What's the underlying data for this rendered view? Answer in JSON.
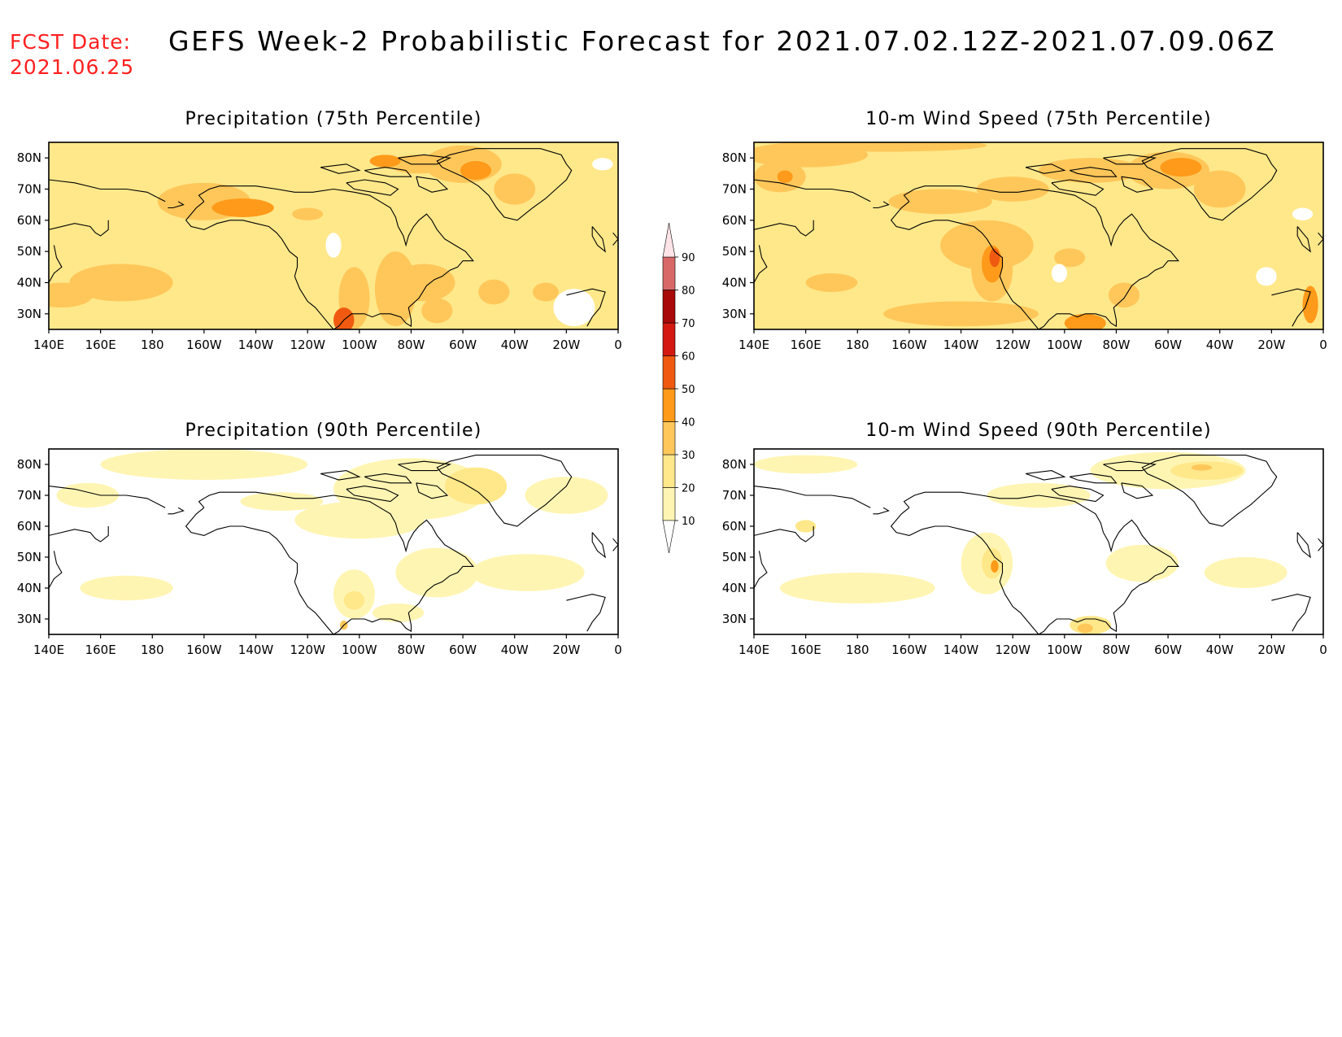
{
  "header": {
    "fcst_label": "FCST Date:",
    "fcst_date": "2021.06.25",
    "title": "GEFS Week-2 Probabilistic Forecast for 2021.07.02.12Z-2021.07.09.06Z"
  },
  "axes": {
    "lon_ticks": [
      "140E",
      "160E",
      "180",
      "160W",
      "140W",
      "120W",
      "100W",
      "80W",
      "60W",
      "40W",
      "20W",
      "0"
    ],
    "lat_ticks": [
      "80N",
      "70N",
      "60N",
      "50N",
      "40N",
      "30N"
    ]
  },
  "legend": {
    "levels": [
      "10",
      "20",
      "30",
      "40",
      "50",
      "60",
      "70",
      "80",
      "90"
    ],
    "colors": [
      "#fff5b3",
      "#ffe88a",
      "#ffc75a",
      "#ff9a1a",
      "#f05a10",
      "#d41a10",
      "#a80a0a",
      "#d86868",
      "#f0a0a8",
      "#ffe4e8"
    ]
  },
  "panels": [
    {
      "id": "precip-75",
      "title": "Precipitation (75th Percentile)",
      "blobs": [
        {
          "lon": 200,
          "lat": 66,
          "rx": 18,
          "ry": 6,
          "level": 2
        },
        {
          "lon": 215,
          "lat": 64,
          "rx": 12,
          "ry": 3,
          "level": 3
        },
        {
          "lon": 168,
          "lat": 40,
          "rx": 20,
          "ry": 6,
          "level": 2
        },
        {
          "lon": 145,
          "lat": 36,
          "rx": 12,
          "ry": 4,
          "level": 2
        },
        {
          "lon": 258,
          "lat": 35,
          "rx": 6,
          "ry": 10,
          "level": 2
        },
        {
          "lon": 254,
          "lat": 28,
          "rx": 4,
          "ry": 4,
          "level": 4
        },
        {
          "lon": 274,
          "lat": 38,
          "rx": 8,
          "ry": 12,
          "level": 2
        },
        {
          "lon": 285,
          "lat": 40,
          "rx": 12,
          "ry": 6,
          "level": 2
        },
        {
          "lon": 300,
          "lat": 78,
          "rx": 15,
          "ry": 6,
          "level": 2
        },
        {
          "lon": 305,
          "lat": 76,
          "rx": 6,
          "ry": 3,
          "level": 3
        },
        {
          "lon": 320,
          "lat": 70,
          "rx": 8,
          "ry": 5,
          "level": 2
        },
        {
          "lon": 283,
          "lat": 78,
          "rx": 12,
          "ry": 3,
          "level": 2
        },
        {
          "lon": 270,
          "lat": 79,
          "rx": 6,
          "ry": 2,
          "level": 3
        },
        {
          "lon": 312,
          "lat": 37,
          "rx": 6,
          "ry": 4,
          "level": 2
        },
        {
          "lon": 332,
          "lat": 37,
          "rx": 5,
          "ry": 3,
          "level": 2
        },
        {
          "lon": 290,
          "lat": 31,
          "rx": 6,
          "ry": 4,
          "level": 2
        },
        {
          "lon": 240,
          "lat": 62,
          "rx": 6,
          "ry": 2,
          "level": 2
        }
      ],
      "white": [
        {
          "lon": 343,
          "lat": 32,
          "rx": 8,
          "ry": 6
        },
        {
          "lon": 250,
          "lat": 52,
          "rx": 3,
          "ry": 4
        },
        {
          "lon": 354,
          "lat": 78,
          "rx": 4,
          "ry": 2
        }
      ]
    },
    {
      "id": "wind-75",
      "title": "10-m Wind Speed (75th Percentile)",
      "blobs": [
        {
          "lon": 160,
          "lat": 81,
          "rx": 24,
          "ry": 4,
          "level": 2
        },
        {
          "lon": 190,
          "lat": 84,
          "rx": 40,
          "ry": 2,
          "level": 2
        },
        {
          "lon": 150,
          "lat": 74,
          "rx": 10,
          "ry": 5,
          "level": 2
        },
        {
          "lon": 212,
          "lat": 66,
          "rx": 20,
          "ry": 4,
          "level": 2
        },
        {
          "lon": 230,
          "lat": 52,
          "rx": 18,
          "ry": 8,
          "level": 2
        },
        {
          "lon": 232,
          "lat": 44,
          "rx": 8,
          "ry": 10,
          "level": 2
        },
        {
          "lon": 232,
          "lat": 46,
          "rx": 4,
          "ry": 6,
          "level": 3
        },
        {
          "lon": 233,
          "lat": 48,
          "rx": 2,
          "ry": 3,
          "level": 4
        },
        {
          "lon": 220,
          "lat": 30,
          "rx": 30,
          "ry": 4,
          "level": 2
        },
        {
          "lon": 268,
          "lat": 27,
          "rx": 8,
          "ry": 3,
          "level": 3
        },
        {
          "lon": 300,
          "lat": 76,
          "rx": 16,
          "ry": 6,
          "level": 2
        },
        {
          "lon": 305,
          "lat": 77,
          "rx": 8,
          "ry": 3,
          "level": 3
        },
        {
          "lon": 320,
          "lat": 70,
          "rx": 10,
          "ry": 6,
          "level": 2
        },
        {
          "lon": 270,
          "lat": 76,
          "rx": 20,
          "ry": 4,
          "level": 2
        },
        {
          "lon": 240,
          "lat": 70,
          "rx": 14,
          "ry": 4,
          "level": 2
        },
        {
          "lon": 152,
          "lat": 74,
          "rx": 3,
          "ry": 2,
          "level": 3
        },
        {
          "lon": 355,
          "lat": 33,
          "rx": 3,
          "ry": 6,
          "level": 3
        },
        {
          "lon": 170,
          "lat": 40,
          "rx": 10,
          "ry": 3,
          "level": 2
        },
        {
          "lon": 262,
          "lat": 48,
          "rx": 6,
          "ry": 3,
          "level": 2
        },
        {
          "lon": 283,
          "lat": 36,
          "rx": 6,
          "ry": 4,
          "level": 2
        }
      ],
      "white": [
        {
          "lon": 352,
          "lat": 62,
          "rx": 4,
          "ry": 2
        },
        {
          "lon": 338,
          "lat": 42,
          "rx": 4,
          "ry": 3
        },
        {
          "lon": 258,
          "lat": 43,
          "rx": 3,
          "ry": 3
        }
      ]
    },
    {
      "id": "precip-90",
      "title": "Precipitation (90th Percentile)",
      "base": "none",
      "blobs": [
        {
          "lon": 200,
          "lat": 80,
          "rx": 40,
          "ry": 5,
          "level": 0
        },
        {
          "lon": 280,
          "lat": 72,
          "rx": 30,
          "ry": 10,
          "level": 0
        },
        {
          "lon": 305,
          "lat": 73,
          "rx": 12,
          "ry": 6,
          "level": 1
        },
        {
          "lon": 260,
          "lat": 62,
          "rx": 25,
          "ry": 6,
          "level": 0
        },
        {
          "lon": 290,
          "lat": 45,
          "rx": 16,
          "ry": 8,
          "level": 0
        },
        {
          "lon": 325,
          "lat": 45,
          "rx": 22,
          "ry": 6,
          "level": 0
        },
        {
          "lon": 170,
          "lat": 40,
          "rx": 18,
          "ry": 4,
          "level": 0
        },
        {
          "lon": 258,
          "lat": 38,
          "rx": 8,
          "ry": 8,
          "level": 0
        },
        {
          "lon": 258,
          "lat": 36,
          "rx": 4,
          "ry": 3,
          "level": 1
        },
        {
          "lon": 254,
          "lat": 28,
          "rx": 1.5,
          "ry": 1.5,
          "level": 2
        },
        {
          "lon": 155,
          "lat": 70,
          "rx": 12,
          "ry": 4,
          "level": 0
        },
        {
          "lon": 340,
          "lat": 70,
          "rx": 16,
          "ry": 6,
          "level": 0
        },
        {
          "lon": 230,
          "lat": 68,
          "rx": 16,
          "ry": 3,
          "level": 0
        },
        {
          "lon": 275,
          "lat": 32,
          "rx": 10,
          "ry": 3,
          "level": 0
        }
      ],
      "white": []
    },
    {
      "id": "wind-90",
      "title": "10-m Wind Speed (90th Percentile)",
      "base": "none",
      "blobs": [
        {
          "lon": 300,
          "lat": 78,
          "rx": 30,
          "ry": 6,
          "level": 0
        },
        {
          "lon": 315,
          "lat": 78,
          "rx": 14,
          "ry": 3,
          "level": 1
        },
        {
          "lon": 313,
          "lat": 79,
          "rx": 4,
          "ry": 1,
          "level": 2
        },
        {
          "lon": 230,
          "lat": 48,
          "rx": 10,
          "ry": 10,
          "level": 0
        },
        {
          "lon": 232,
          "lat": 48,
          "rx": 4,
          "ry": 5,
          "level": 1
        },
        {
          "lon": 233,
          "lat": 47,
          "rx": 1.5,
          "ry": 2,
          "level": 3
        },
        {
          "lon": 180,
          "lat": 40,
          "rx": 30,
          "ry": 5,
          "level": 0
        },
        {
          "lon": 270,
          "lat": 28,
          "rx": 8,
          "ry": 3,
          "level": 1
        },
        {
          "lon": 268,
          "lat": 27,
          "rx": 3,
          "ry": 1.5,
          "level": 2
        },
        {
          "lon": 160,
          "lat": 80,
          "rx": 20,
          "ry": 3,
          "level": 0
        },
        {
          "lon": 290,
          "lat": 48,
          "rx": 14,
          "ry": 6,
          "level": 0
        },
        {
          "lon": 330,
          "lat": 45,
          "rx": 16,
          "ry": 5,
          "level": 0
        },
        {
          "lon": 160,
          "lat": 60,
          "rx": 4,
          "ry": 2,
          "level": 1
        },
        {
          "lon": 250,
          "lat": 70,
          "rx": 20,
          "ry": 4,
          "level": 0
        }
      ],
      "white": []
    }
  ]
}
